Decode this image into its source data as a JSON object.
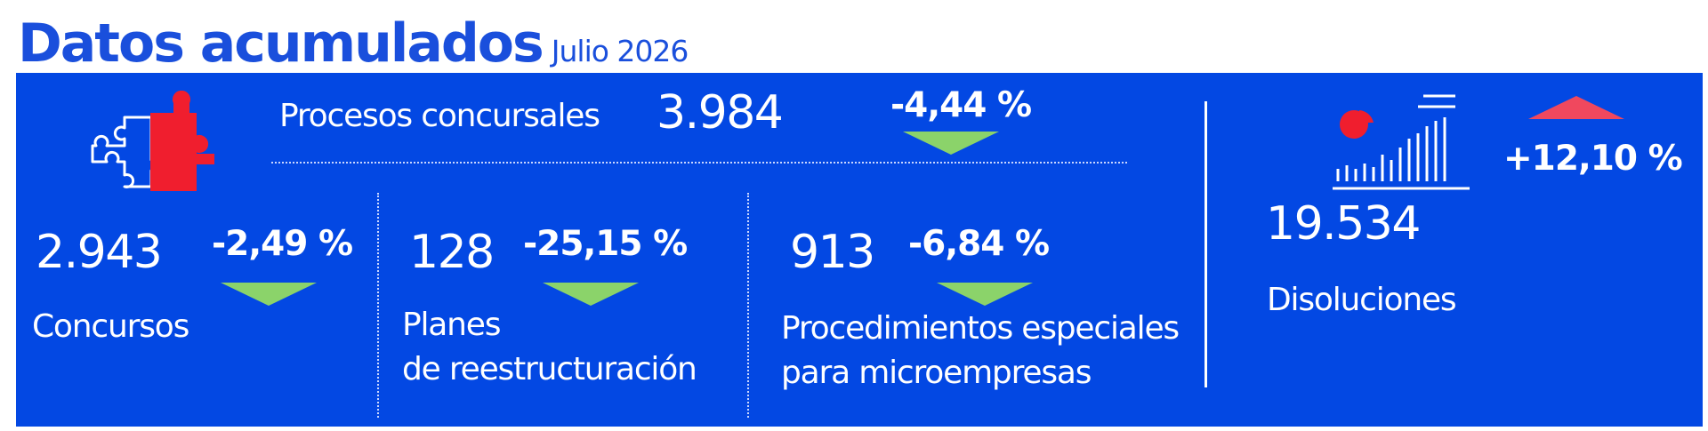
{
  "header": {
    "title": "Datos acumulados",
    "subtitle": "Julio 2026"
  },
  "colors": {
    "panel_blue": "#0348e3",
    "title_blue": "#1a4fdc",
    "decrease_green": "#8bd36a",
    "increase_red": "#f0485e"
  },
  "procesos": {
    "label": "Procesos concursales",
    "value": "3.984",
    "change": "-4,44 %",
    "trend": "down",
    "icon": "puzzle-icon"
  },
  "concursos": {
    "value": "2.943",
    "change": "-2,49 %",
    "trend": "down",
    "label": "Concursos"
  },
  "planes": {
    "value": "128",
    "change": "-25,15 %",
    "trend": "down",
    "label_line1": "Planes",
    "label_line2": "de reestructuración"
  },
  "procedimientos": {
    "value": "913",
    "change": "-6,84 %",
    "trend": "down",
    "label_line1": "Procedimientos especiales",
    "label_line2": "para microempresas"
  },
  "disoluciones": {
    "value": "19.534",
    "change": "+12,10 %",
    "trend": "up",
    "label": "Disoluciones",
    "icon": "chart-icon"
  }
}
